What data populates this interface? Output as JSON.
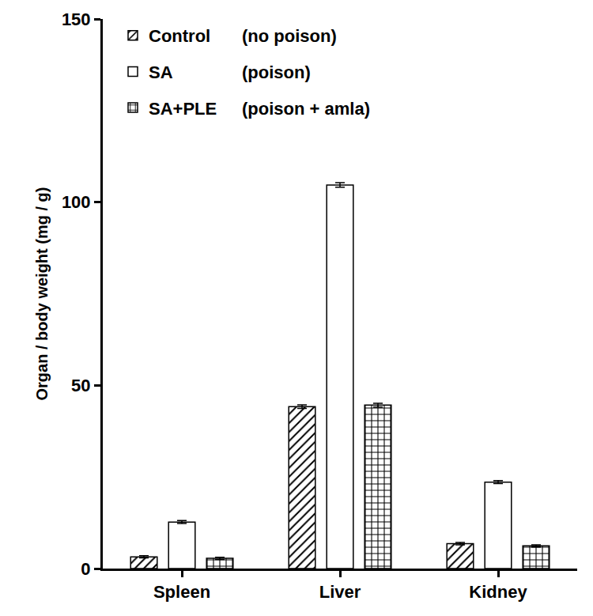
{
  "chart_data": {
    "type": "bar",
    "categories": [
      "Spleen",
      "Liver",
      "Kidney"
    ],
    "series": [
      {
        "name": "Control",
        "color": "#ffffff",
        "marker": "diagonal",
        "values": [
          3.2,
          44.2,
          6.8
        ],
        "errors": [
          0.3,
          0.5,
          0.3
        ]
      },
      {
        "name": "SA",
        "color": "#ffffff",
        "marker": "none",
        "values": [
          12.7,
          104.7,
          23.6
        ],
        "errors": [
          0.4,
          0.6,
          0.4
        ]
      },
      {
        "name": "SA+PLE",
        "color": "#ffffff",
        "marker": "grid",
        "values": [
          2.8,
          44.6,
          6.2
        ],
        "errors": [
          0.3,
          0.5,
          0.3
        ]
      }
    ],
    "annotations": [
      "(no poison)",
      "(poison)",
      "(poison + amla)"
    ],
    "ylabel": "Organ / body weight (mg / g)",
    "ylim": [
      0,
      150
    ],
    "yticks": [
      0,
      50,
      100,
      150
    ],
    "grid": false,
    "legend": "upper left"
  }
}
